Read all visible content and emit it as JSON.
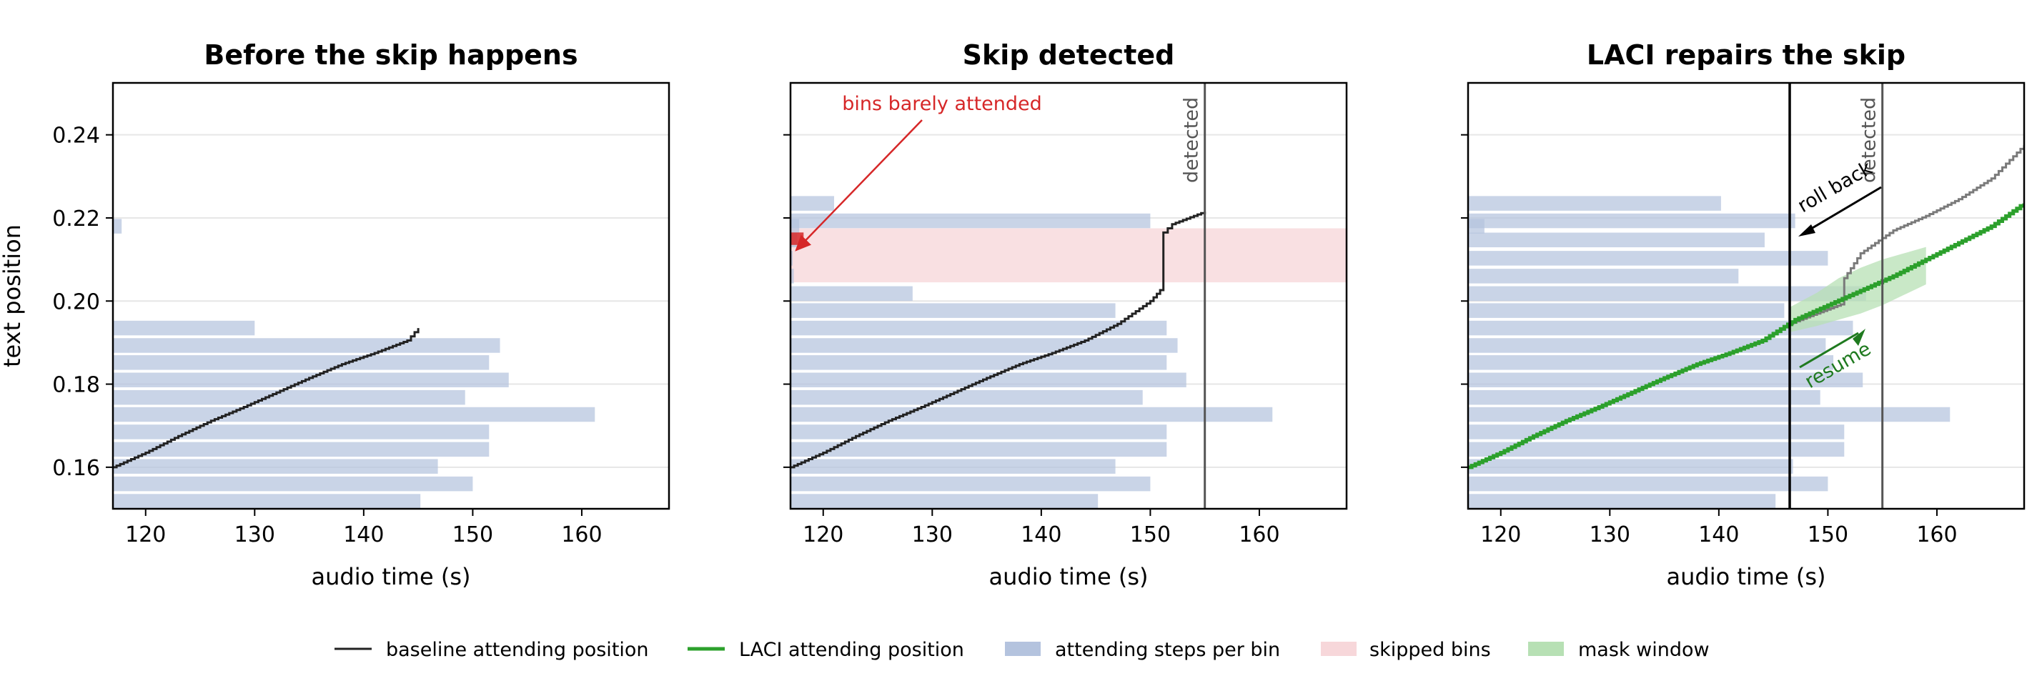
{
  "chart_data": [
    {
      "type": "bar",
      "title": "Before the skip happens",
      "xlabel": "audio time (s)",
      "ylabel": "text position",
      "xlim": [
        117,
        168
      ],
      "ylim": [
        0.15,
        0.2525
      ],
      "xticks": [
        "120",
        "130",
        "140",
        "150",
        "160"
      ],
      "yticks": [
        "0.16",
        "0.18",
        "0.20",
        "0.22",
        "0.24"
      ],
      "bins": {
        "y": [
          0.218,
          0.1935,
          0.1893,
          0.1852,
          0.181,
          0.1768,
          0.1727,
          0.1685,
          0.1643,
          0.1602,
          0.156,
          0.1518
        ],
        "end": [
          117.8,
          130.0,
          152.5,
          151.5,
          153.3,
          149.3,
          161.2,
          151.5,
          151.5,
          146.8,
          150.0,
          145.2
        ]
      },
      "series": [
        {
          "name": "baseline attending position",
          "x": [
            117,
            120,
            123,
            126,
            129,
            132,
            135,
            138,
            141,
            144,
            145
          ],
          "y": [
            0.16,
            0.1635,
            0.1675,
            0.1712,
            0.1745,
            0.178,
            0.1815,
            0.1848,
            0.1875,
            0.1905,
            0.1935
          ]
        }
      ]
    },
    {
      "type": "bar",
      "title": "Skip detected",
      "xlabel": "audio time (s)",
      "xlim": [
        117,
        168
      ],
      "ylim": [
        0.15,
        0.2525
      ],
      "xticks": [
        "120",
        "130",
        "140",
        "150",
        "160"
      ],
      "skipped_band": [
        0.2045,
        0.2175
      ],
      "detected_x": 155,
      "detected_label": "detected",
      "annotation": "bins barely attended",
      "bins": {
        "y": [
          0.218,
          0.2235,
          0.2193,
          0.2147,
          0.2103,
          0.206,
          0.2018,
          0.1977,
          0.1935,
          0.1893,
          0.1852,
          0.181,
          0.1768,
          0.1727,
          0.1685,
          0.1643,
          0.1602,
          0.156,
          0.1518
        ],
        "end": [
          117.8,
          121.0,
          150.0,
          117.6,
          117.2,
          117.3,
          128.2,
          146.8,
          151.5,
          152.5,
          151.5,
          153.3,
          149.3,
          161.2,
          151.5,
          151.5,
          146.8,
          150.0,
          145.2
        ]
      },
      "series": [
        {
          "name": "baseline attending position",
          "x": [
            117,
            120,
            123,
            126,
            129,
            132,
            135,
            138,
            141,
            144,
            147,
            150,
            151.2,
            151.2,
            152,
            155
          ],
          "y": [
            0.16,
            0.1635,
            0.1675,
            0.1712,
            0.1745,
            0.178,
            0.1815,
            0.1848,
            0.1875,
            0.1905,
            0.1945,
            0.2,
            0.2035,
            0.2165,
            0.2185,
            0.2215
          ]
        }
      ]
    },
    {
      "type": "bar",
      "title": "LACI repairs the skip",
      "xlabel": "audio time (s)",
      "xlim": [
        117,
        168
      ],
      "ylim": [
        0.15,
        0.2525
      ],
      "xticks": [
        "120",
        "130",
        "140",
        "150",
        "160"
      ],
      "rollback_x": 146.5,
      "detected_x": 155,
      "detected_label": "detected",
      "rollback_label": "roll back",
      "resume_label": "resume",
      "bins": {
        "y": [
          0.2235,
          0.2193,
          0.2147,
          0.2103,
          0.206,
          0.2018,
          0.1977,
          0.1935,
          0.1893,
          0.1852,
          0.181,
          0.1768,
          0.1727,
          0.1685,
          0.1643,
          0.1602,
          0.156,
          0.1518,
          0.218
        ],
        "end": [
          140.2,
          147.0,
          144.2,
          150.0,
          141.8,
          153.5,
          146.0,
          152.3,
          149.8,
          150.5,
          153.2,
          149.3,
          161.2,
          151.5,
          151.5,
          146.8,
          150.0,
          145.2,
          118.5
        ]
      },
      "series": [
        {
          "name": "baseline attending position",
          "x": [
            146.5,
            149,
            151.5,
            151.5,
            153,
            156,
            159,
            162,
            165,
            168
          ],
          "y": [
            0.1945,
            0.197,
            0.1995,
            0.2055,
            0.2115,
            0.217,
            0.2205,
            0.2245,
            0.2295,
            0.2375
          ]
        },
        {
          "name": "LACI attending position",
          "x": [
            117,
            120,
            123,
            126,
            129,
            132,
            135,
            138,
            141,
            144,
            147,
            150,
            153,
            156,
            159,
            162,
            165,
            168
          ],
          "y": [
            0.16,
            0.1635,
            0.1675,
            0.1712,
            0.1745,
            0.178,
            0.1815,
            0.1848,
            0.1875,
            0.1905,
            0.1955,
            0.199,
            0.2025,
            0.206,
            0.21,
            0.214,
            0.218,
            0.2235
          ]
        }
      ],
      "mask_window": {
        "x": [
          146.5,
          149,
          151,
          153,
          155,
          157,
          159
        ],
        "y": [
          0.1955,
          0.198,
          0.2005,
          0.2025,
          0.2045,
          0.2065,
          0.2085
        ],
        "halfwidth": [
          0.003,
          0.004,
          0.005,
          0.0055,
          0.0055,
          0.005,
          0.0045
        ]
      }
    }
  ],
  "legend": {
    "baseline": "baseline attending position",
    "laci": "LACI attending position",
    "bins": "attending steps per bin",
    "skipped": "skipped bins",
    "mask": "mask window"
  },
  "colors": {
    "baseline": "#222222",
    "baseline_panel3": "#7a7a7a",
    "laci": "#2ca02c",
    "bins": "#b4c3de",
    "skipped": "#f4c6ca",
    "mask": "#b7e0b4",
    "detected_line": "#555555",
    "annotation": "#d62728",
    "resume": "#1f7a1f"
  }
}
